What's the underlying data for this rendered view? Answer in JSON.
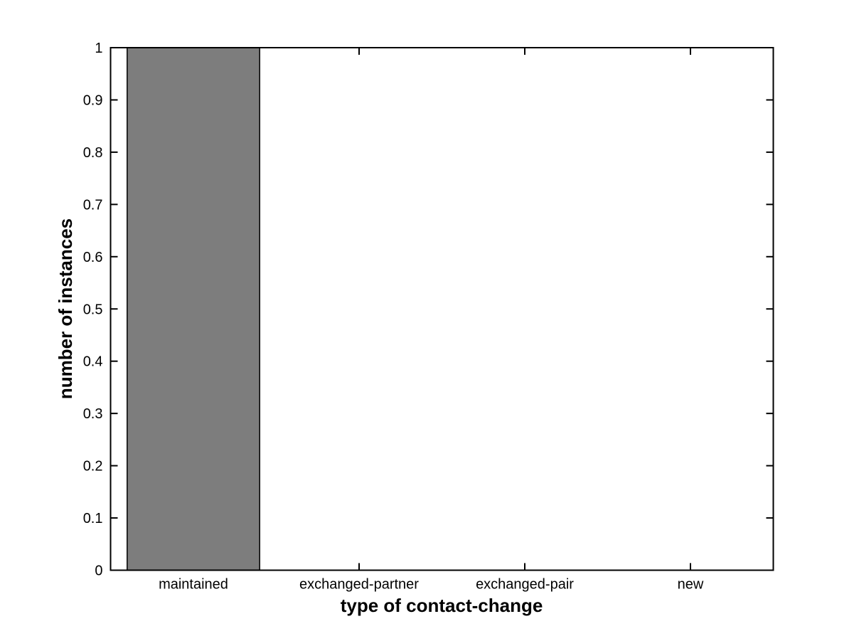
{
  "figure": {
    "background_color": "#ffffff"
  },
  "chart_data": {
    "type": "bar",
    "categories": [
      "maintained",
      "exchanged-partner",
      "exchanged-pair",
      "new"
    ],
    "values": [
      1,
      0,
      0,
      0
    ],
    "title": "",
    "xlabel": "type of contact-change",
    "ylabel": "number of instances",
    "ylim": [
      0,
      1
    ],
    "yticks": [
      0,
      0.1,
      0.2,
      0.3,
      0.4,
      0.5,
      0.6,
      0.7,
      0.8,
      0.9,
      1
    ],
    "ytick_labels": [
      "0",
      "0.1",
      "0.2",
      "0.3",
      "0.4",
      "0.5",
      "0.6",
      "0.7",
      "0.8",
      "0.9",
      "1"
    ],
    "bar_color": "#7d7d7d",
    "bar_edge_color": "#000000",
    "bar_width_fraction": 0.8,
    "axis_color": "#000000",
    "grid": false,
    "legend": null,
    "box": true,
    "tick_direction": "in"
  }
}
